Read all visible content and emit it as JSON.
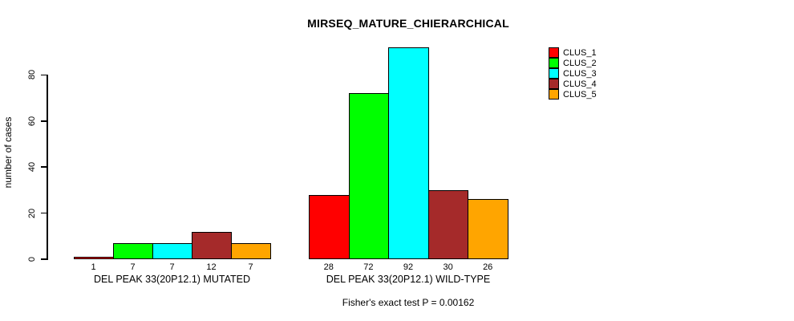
{
  "figure": {
    "title": "MIRSEQ_MATURE_CHIERARCHICAL",
    "ylabel": "number of cases",
    "annotation": "Fisher's exact test P = 0.00162"
  },
  "legend": {
    "entries": [
      {
        "label": "CLUS_1",
        "color": "#FF0000"
      },
      {
        "label": "CLUS_2",
        "color": "#00FF00"
      },
      {
        "label": "CLUS_3",
        "color": "#00FFFF"
      },
      {
        "label": "CLUS_4",
        "color": "#A52A2A"
      },
      {
        "label": "CLUS_5",
        "color": "#FFA500"
      }
    ]
  },
  "chart_data": {
    "type": "bar",
    "title": "MIRSEQ_MATURE_CHIERARCHICAL",
    "xlabel": "",
    "ylabel": "number of cases",
    "yticks": [
      0,
      20,
      40,
      60,
      80
    ],
    "ylim": [
      0,
      96
    ],
    "grid": false,
    "legend_position": "top-right",
    "series": [
      "CLUS_1",
      "CLUS_2",
      "CLUS_3",
      "CLUS_4",
      "CLUS_5"
    ],
    "colors": [
      "#FF0000",
      "#00FF00",
      "#00FFFF",
      "#A52A2A",
      "#FFA500"
    ],
    "groups": [
      {
        "label": "DEL PEAK 33(20P12.1) MUTATED",
        "values": [
          1,
          7,
          7,
          12,
          7
        ]
      },
      {
        "label": "DEL PEAK 33(20P12.1) WILD-TYPE",
        "values": [
          28,
          72,
          92,
          30,
          26
        ]
      }
    ],
    "bar_border_color": "#000000",
    "annotation": "Fisher's exact test P = 0.00162"
  }
}
